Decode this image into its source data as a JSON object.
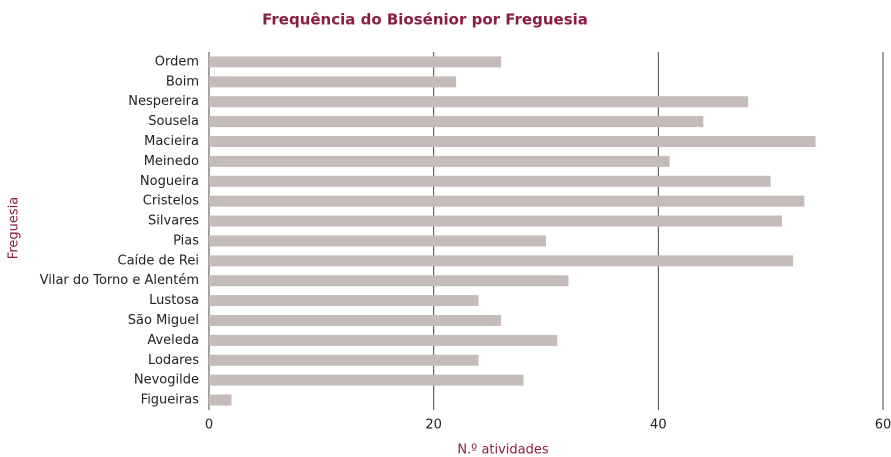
{
  "chart_data": {
    "type": "barh",
    "title": "Frequência do Biosénior por Freguesia",
    "xlabel": "N.º atividades",
    "ylabel": "Freguesia",
    "categories": [
      "Ordem",
      "Boim",
      "Nespereira",
      "Sousela",
      "Macieira",
      "Meinedo",
      "Nogueira",
      "Cristelos",
      "Silvares",
      "Pias",
      "Caíde de Rei",
      "Vilar do Torno e Alentém",
      "Lustosa",
      "São Miguel",
      "Aveleda",
      "Lodares",
      "Nevogilde",
      "Figueiras"
    ],
    "values": [
      26,
      22,
      48,
      44,
      54,
      41,
      50,
      53,
      51,
      30,
      52,
      32,
      24,
      26,
      31,
      24,
      28,
      2
    ],
    "color": "#c5bbb8",
    "xlim": [
      0,
      60
    ],
    "xticks": [
      0,
      20,
      40,
      60
    ],
    "grid": true
  }
}
